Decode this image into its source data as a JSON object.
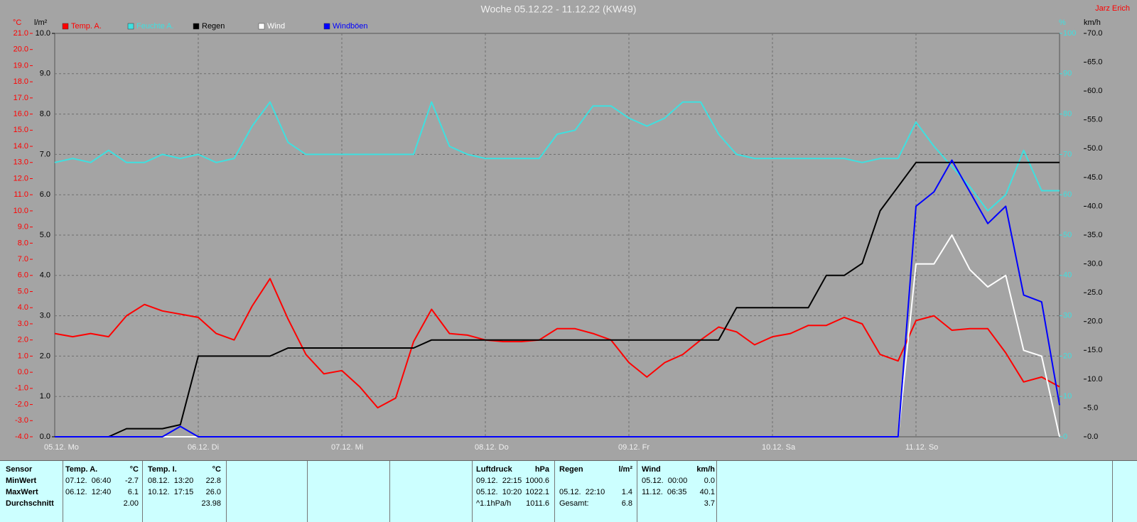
{
  "chart_data": {
    "type": "line",
    "title": "Woche 05.12.22 - 11.12.22 (KW49)",
    "author": "Jarz Erich",
    "y_unit": "°C",
    "y2_unit": "l/m²",
    "y3_unit": "%",
    "y4_unit": "km/h",
    "xlim": [
      0,
      7
    ],
    "xticks": [
      {
        "value": 0,
        "label": "05.12. Mo"
      },
      {
        "value": 1,
        "label": "06.12. Di"
      },
      {
        "value": 2,
        "label": "07.12. Mi"
      },
      {
        "value": 3,
        "label": "08.12. Do"
      },
      {
        "value": 4,
        "label": "09.12. Fr"
      },
      {
        "value": 5,
        "label": "10.12. Sa"
      },
      {
        "value": 6,
        "label": "11.12. So"
      }
    ],
    "ylim": [
      -4,
      21
    ],
    "yticks": [
      {
        "value": 21,
        "label": "21.0"
      },
      {
        "value": 20,
        "label": "20.0"
      },
      {
        "value": 19,
        "label": "19.0"
      },
      {
        "value": 18,
        "label": "18.0"
      },
      {
        "value": 17,
        "label": "17.0"
      },
      {
        "value": 16,
        "label": "16.0"
      },
      {
        "value": 15,
        "label": "15.0"
      },
      {
        "value": 14,
        "label": "14.0"
      },
      {
        "value": 13,
        "label": "13.0"
      },
      {
        "value": 12,
        "label": "12.0"
      },
      {
        "value": 11,
        "label": "11.0"
      },
      {
        "value": 10,
        "label": "10.0"
      },
      {
        "value": 9,
        "label": "9.0"
      },
      {
        "value": 8,
        "label": "8.0"
      },
      {
        "value": 7,
        "label": "7.0"
      },
      {
        "value": 6,
        "label": "6.0"
      },
      {
        "value": 5,
        "label": "5.0"
      },
      {
        "value": 4,
        "label": "4.0"
      },
      {
        "value": 3,
        "label": "3.0"
      },
      {
        "value": 2,
        "label": "2.0"
      },
      {
        "value": 1,
        "label": "1.0"
      },
      {
        "value": 0,
        "label": "0.0"
      },
      {
        "value": -1,
        "label": "-1.0"
      },
      {
        "value": -2,
        "label": "-2.0"
      },
      {
        "value": -3,
        "label": "-3.0"
      },
      {
        "value": -4,
        "label": "-4.0"
      }
    ],
    "y2lim": [
      0,
      10
    ],
    "y2ticks": [
      {
        "value": 10,
        "label": "10.0"
      },
      {
        "value": 9,
        "label": "9.0"
      },
      {
        "value": 8,
        "label": "8.0"
      },
      {
        "value": 7,
        "label": "7.0"
      },
      {
        "value": 6,
        "label": "6.0"
      },
      {
        "value": 5,
        "label": "5.0"
      },
      {
        "value": 4,
        "label": "4.0"
      },
      {
        "value": 3,
        "label": "3.0"
      },
      {
        "value": 2,
        "label": "2.0"
      },
      {
        "value": 1,
        "label": "1.0"
      },
      {
        "value": 0,
        "label": "0.0"
      }
    ],
    "y3lim": [
      0,
      100
    ],
    "y3ticks": [
      100,
      90,
      80,
      70,
      60,
      50,
      40,
      30,
      20,
      10,
      0
    ],
    "y4lim": [
      0,
      70
    ],
    "y4ticks": [
      {
        "value": 70,
        "label": "70.0"
      },
      {
        "value": 65,
        "label": "65.0"
      },
      {
        "value": 60,
        "label": "60.0"
      },
      {
        "value": 55,
        "label": "55.0"
      },
      {
        "value": 50,
        "label": "50.0"
      },
      {
        "value": 45,
        "label": "45.0"
      },
      {
        "value": 40,
        "label": "40.0"
      },
      {
        "value": 35,
        "label": "35.0"
      },
      {
        "value": 30,
        "label": "30.0"
      },
      {
        "value": 25,
        "label": "25.0"
      },
      {
        "value": 20,
        "label": "20.0"
      },
      {
        "value": 15,
        "label": "15.0"
      },
      {
        "value": 10,
        "label": "10.0"
      },
      {
        "value": 5,
        "label": "5.0"
      },
      {
        "value": 0,
        "label": "0.0"
      }
    ],
    "grid": true,
    "x": [
      0,
      0.125,
      0.25,
      0.375,
      0.5,
      0.625,
      0.75,
      0.875,
      1,
      1.125,
      1.25,
      1.375,
      1.5,
      1.625,
      1.75,
      1.875,
      2,
      2.125,
      2.25,
      2.375,
      2.5,
      2.625,
      2.75,
      2.875,
      3,
      3.125,
      3.25,
      3.375,
      3.5,
      3.625,
      3.75,
      3.875,
      4,
      4.125,
      4.25,
      4.375,
      4.5,
      4.625,
      4.75,
      4.875,
      5,
      5.125,
      5.25,
      5.375,
      5.5,
      5.625,
      5.75,
      5.875,
      6,
      6.125,
      6.25,
      6.375,
      6.5,
      6.625,
      6.75,
      6.875,
      7
    ],
    "series": [
      {
        "name": "Temp. A.",
        "color": "#ff0000",
        "axis": "y",
        "values": [
          2.4,
          2.2,
          2.4,
          2.2,
          3.5,
          4.2,
          3.8,
          3.6,
          3.4,
          2.4,
          2.0,
          4.1,
          5.8,
          3.3,
          1.1,
          -0.1,
          0.1,
          -0.9,
          -2.2,
          -1.6,
          1.9,
          3.9,
          2.4,
          2.3,
          2.0,
          1.9,
          1.9,
          2.0,
          2.7,
          2.7,
          2.4,
          2.0,
          0.6,
          -0.3,
          0.6,
          1.1,
          2.0,
          2.8,
          2.5,
          1.7,
          2.2,
          2.4,
          2.9,
          2.9,
          3.4,
          3.0,
          1.1,
          0.7,
          3.2,
          3.5,
          2.6,
          2.7,
          2.7,
          1.2,
          -0.6,
          -0.3,
          -0.9
        ]
      },
      {
        "name": "Feuchte A.",
        "color": "#3ee0e0",
        "axis": "y3",
        "values": [
          68,
          69,
          68,
          71,
          68,
          68,
          70,
          69,
          70,
          68,
          69,
          77,
          83,
          73,
          70,
          70,
          70,
          70,
          70,
          70,
          70,
          83,
          72,
          70,
          69,
          69,
          69,
          69,
          75,
          76,
          82,
          82,
          79,
          77,
          79,
          83,
          83,
          75,
          70,
          69,
          69,
          69,
          69,
          69,
          69,
          68,
          69,
          69,
          78,
          72,
          67,
          62,
          56,
          60,
          71,
          61,
          61
        ]
      },
      {
        "name": "Regen",
        "color": "#000000",
        "axis": "y2",
        "values": [
          0,
          0,
          0,
          0,
          0.2,
          0.2,
          0.2,
          0.3,
          2.0,
          2.0,
          2.0,
          2.0,
          2.0,
          2.2,
          2.2,
          2.2,
          2.2,
          2.2,
          2.2,
          2.2,
          2.2,
          2.4,
          2.4,
          2.4,
          2.4,
          2.4,
          2.4,
          2.4,
          2.4,
          2.4,
          2.4,
          2.4,
          2.4,
          2.4,
          2.4,
          2.4,
          2.4,
          2.4,
          3.2,
          3.2,
          3.2,
          3.2,
          3.2,
          4.0,
          4.0,
          4.3,
          5.6,
          6.2,
          6.8,
          6.8,
          6.8,
          6.8,
          6.8,
          6.8,
          6.8,
          6.8,
          6.8
        ]
      },
      {
        "name": "Wind",
        "color": "#ffffff",
        "axis": "y4",
        "values": [
          0,
          0,
          0,
          0,
          0,
          0,
          0,
          0,
          0,
          0,
          0,
          0,
          0,
          0,
          0,
          0,
          0,
          0,
          0,
          0,
          0,
          0,
          0,
          0,
          0,
          0,
          0,
          0,
          0,
          0,
          0,
          0,
          0,
          0,
          0,
          0,
          0,
          0,
          0,
          0,
          0,
          0,
          0,
          0,
          0,
          0,
          0,
          0,
          30,
          30,
          35,
          29,
          26,
          28,
          15,
          14,
          0
        ]
      },
      {
        "name": "Windböen",
        "color": "#0000ff",
        "axis": "y4",
        "values": [
          0,
          0,
          0,
          0,
          0,
          0,
          0,
          1.8,
          0,
          0,
          0,
          0,
          0,
          0,
          0,
          0,
          0,
          0,
          0,
          0,
          0,
          0,
          0,
          0,
          0,
          0,
          0,
          0,
          0,
          0,
          0,
          0,
          0,
          0,
          0,
          0,
          0,
          0,
          0,
          0,
          0,
          0,
          0,
          0,
          0,
          0,
          0,
          0,
          40,
          42.5,
          48,
          42.5,
          37,
          40,
          24.6,
          23.4,
          5.5
        ]
      }
    ]
  },
  "stats": {
    "row_labels": [
      "Sensor",
      "MinWert",
      "MaxWert",
      "Durchschnitt"
    ],
    "groups": [
      {
        "name": "Temp. A.",
        "unit": "°C",
        "min": {
          "time": "07.12.  06:40",
          "value": "-2.7"
        },
        "max": {
          "time": "06.12.  12:40",
          "value": "6.1"
        },
        "avg": {
          "value": "2.00"
        }
      },
      {
        "name": "Temp. I.",
        "unit": "°C",
        "min": {
          "time": "08.12.  13:20",
          "value": "22.8"
        },
        "max": {
          "time": "10.12.  17:15",
          "value": "26.0"
        },
        "avg": {
          "value": "23.98"
        }
      },
      {
        "name": "Luftdruck",
        "unit": "hPa",
        "min": {
          "time": "09.12.  22:15",
          "value": "1000.6"
        },
        "max": {
          "time": "05.12.  10:20",
          "value": "1022.1"
        },
        "avg": {
          "time": "^1.1hPa/h",
          "value": "1011.6"
        }
      },
      {
        "name": "Regen",
        "unit": "l/m²",
        "max": {
          "time": "05.12.  22:10",
          "value": "1.4"
        },
        "avg": {
          "time": "Gesamt:",
          "value": "6.8"
        }
      },
      {
        "name": "Wind",
        "unit": "km/h",
        "min": {
          "time": "05.12.  00:00",
          "value": "0.0"
        },
        "max": {
          "time": "11.12.  06:35",
          "value": "40.1"
        },
        "avg": {
          "value": "3.7"
        }
      }
    ]
  }
}
